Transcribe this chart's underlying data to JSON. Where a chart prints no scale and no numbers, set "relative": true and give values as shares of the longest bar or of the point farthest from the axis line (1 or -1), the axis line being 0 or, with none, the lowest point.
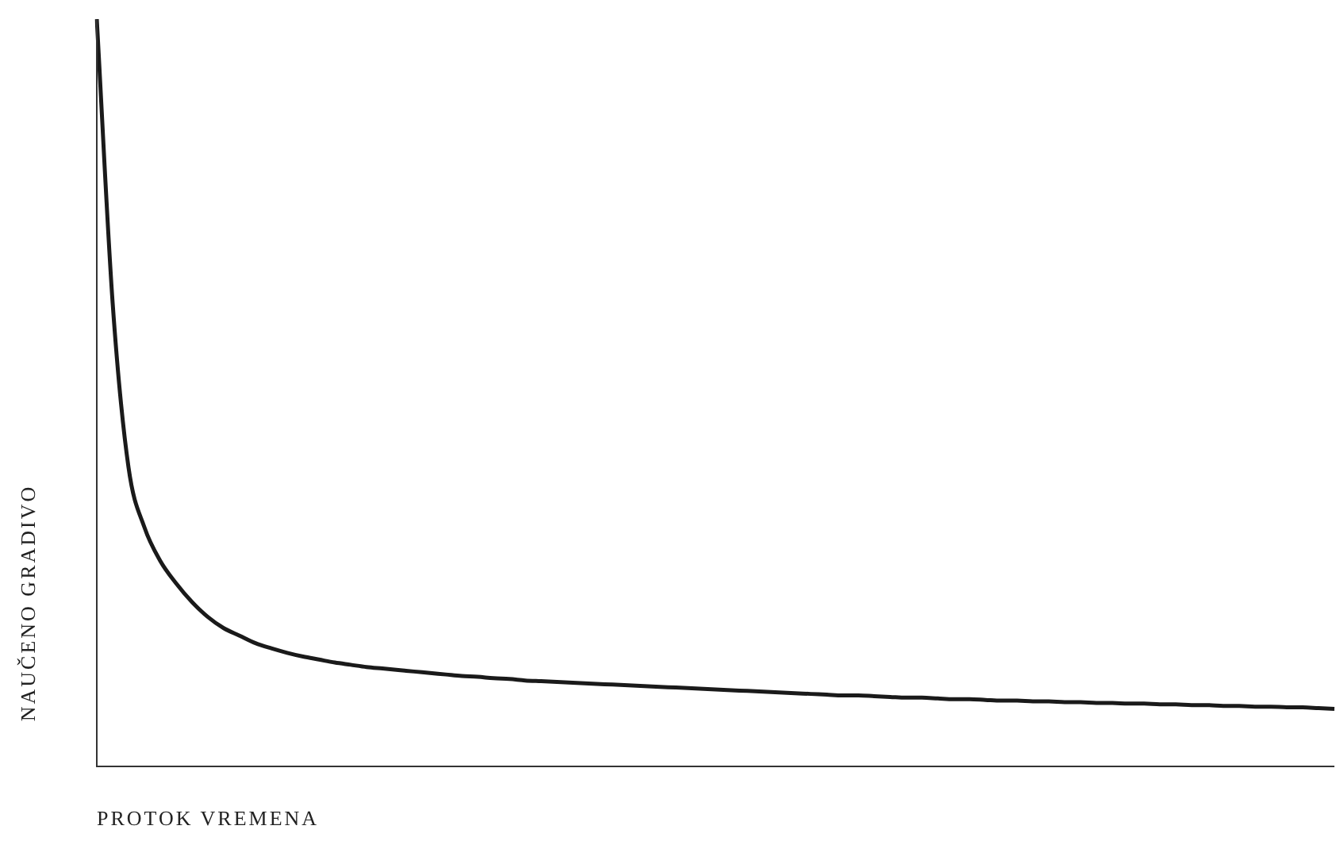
{
  "chart_data": {
    "type": "line",
    "xlabel": "PROTOK VREMENA",
    "ylabel": "NAUČENO GRADIVO",
    "relative": true,
    "tick_labels": false,
    "marker": "none",
    "line_style": "solid",
    "categories": [
      null,
      null,
      null,
      null,
      null,
      null,
      null,
      null,
      null,
      null,
      null,
      null,
      null,
      null,
      null,
      null,
      null,
      null,
      null,
      null,
      null,
      null,
      null,
      null,
      null,
      null,
      null,
      null,
      null,
      null,
      null,
      null,
      null,
      null,
      null,
      null,
      null,
      null,
      null,
      null,
      null,
      null,
      null,
      null,
      null,
      null,
      null,
      null,
      null,
      null,
      null,
      null,
      null,
      null,
      null,
      null,
      null,
      null,
      null,
      null,
      null,
      null,
      null,
      null,
      null,
      null,
      null,
      null,
      null,
      null,
      null,
      null,
      null,
      null,
      null,
      null,
      null,
      null,
      null
    ],
    "series": [
      {
        "color": "#1a1a1a",
        "values": [
          1.0,
          0.62,
          0.4,
          0.32,
          0.275,
          0.245,
          0.22,
          0.2,
          0.185,
          0.175,
          0.165,
          0.158,
          0.152,
          0.147,
          0.143,
          0.139,
          0.136,
          0.133,
          0.131,
          0.129,
          0.127,
          0.125,
          0.123,
          0.121,
          0.12,
          0.118,
          0.117,
          0.115,
          0.114,
          0.113,
          0.112,
          0.111,
          0.11,
          0.109,
          0.108,
          0.107,
          0.106,
          0.105,
          0.104,
          0.103,
          0.102,
          0.101,
          0.1,
          0.099,
          0.098,
          0.097,
          0.096,
          0.095,
          0.095,
          0.094,
          0.093,
          0.092,
          0.092,
          0.091,
          0.09,
          0.09,
          0.089,
          0.088,
          0.088,
          0.087,
          0.087,
          0.086,
          0.086,
          0.085,
          0.085,
          0.084,
          0.084,
          0.083,
          0.083,
          0.082,
          0.082,
          0.081,
          0.081,
          0.08,
          0.08,
          0.079,
          0.079,
          0.078,
          0.077
        ]
      }
    ]
  }
}
